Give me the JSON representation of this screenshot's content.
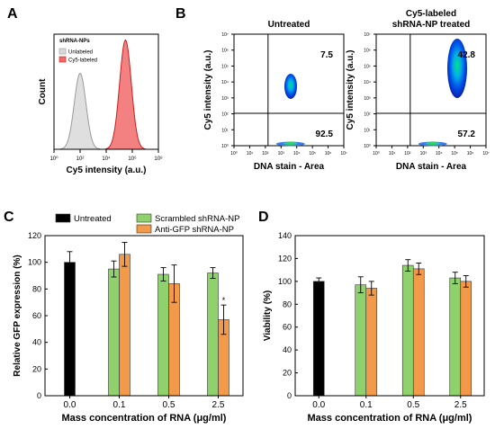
{
  "panels": {
    "A": "A",
    "B": "B",
    "C": "C",
    "D": "D"
  },
  "colors": {
    "untreated": "#000000",
    "scrambled": "#8fd16c",
    "anti_gfp": "#f29a4a",
    "unlabeled_hist": "#d9d9d9",
    "cy5_hist": "#f26b6b"
  },
  "chart_data": [
    {
      "id": "A",
      "type": "area",
      "xlabel": "Cy5 intensity (a.u.)",
      "ylabel": "Count",
      "x_scale": "log",
      "xlim": [
        1,
        100000000
      ],
      "x_ticks": [
        "10⁰",
        "10²",
        "10⁴",
        "10⁶",
        "10⁸"
      ],
      "legend_title": "shRNA-NPs",
      "legend_position": "top-left",
      "series": [
        {
          "name": "Unlabeled",
          "peak_x": 100,
          "peak_height": 0.66
        },
        {
          "name": "Cy5-labeled",
          "peak_x": 300000,
          "peak_height": 0.95
        }
      ]
    },
    {
      "id": "B1",
      "type": "heatmap",
      "title": "Untreated",
      "xlabel": "DNA stain - Area",
      "ylabel": "Cy5 intensity (a.u.)",
      "x_ticks": [
        "10⁰",
        "10¹",
        "10²",
        "10³",
        "10⁴",
        "10⁵",
        "10⁶",
        "10⁷"
      ],
      "y_ticks": [
        "10⁰",
        "10¹",
        "10²",
        "10³",
        "10⁴",
        "10⁵",
        "10⁶",
        "10⁷"
      ],
      "quadrant_values": {
        "upper_right": "7.5",
        "lower_right": "92.5"
      }
    },
    {
      "id": "B2",
      "type": "heatmap",
      "title": "Cy5-labeled\nshRNA-NP treated",
      "title_lines": [
        "Cy5-labeled",
        "shRNA-NP treated"
      ],
      "xlabel": "DNA stain - Area",
      "ylabel": "Cy5 intensity (a.u.)",
      "x_ticks": [
        "10⁰",
        "10¹",
        "10²",
        "10³",
        "10⁴",
        "10⁵",
        "10⁶",
        "10⁷"
      ],
      "y_ticks": [
        "10⁰",
        "10¹",
        "10²",
        "10³",
        "10⁴",
        "10⁵",
        "10⁶",
        "10⁷"
      ],
      "quadrant_values": {
        "upper_right": "42.8",
        "lower_right": "57.2"
      }
    },
    {
      "id": "C",
      "type": "bar",
      "xlabel": "Mass concentration of RNA (μg/ml)",
      "ylabel": "Relative GFP expression (%)",
      "ylim": [
        0,
        120
      ],
      "y_ticks": [
        0,
        20,
        40,
        60,
        80,
        100,
        120
      ],
      "categories": [
        "0.0",
        "0.1",
        "0.5",
        "2.5"
      ],
      "legend": [
        "Untreated",
        "Scrambled shRNA-NP",
        "Anti-GFP shRNA-NP"
      ],
      "series": [
        {
          "name": "Untreated",
          "values": [
            100,
            null,
            null,
            null
          ],
          "errors": [
            8,
            null,
            null,
            null
          ]
        },
        {
          "name": "Scrambled shRNA-NP",
          "values": [
            null,
            95,
            91,
            92
          ],
          "errors": [
            null,
            6,
            5,
            4
          ]
        },
        {
          "name": "Anti-GFP shRNA-NP",
          "values": [
            null,
            106,
            84,
            57
          ],
          "errors": [
            null,
            9,
            14,
            11
          ]
        }
      ],
      "annotation": "*"
    },
    {
      "id": "D",
      "type": "bar",
      "xlabel": "Mass concentration of RNA (μg/ml)",
      "ylabel": "Viability (%)",
      "ylim": [
        0,
        140
      ],
      "y_ticks": [
        0,
        20,
        40,
        60,
        80,
        100,
        120,
        140
      ],
      "categories": [
        "0.0",
        "0.1",
        "0.5",
        "2.5"
      ],
      "series": [
        {
          "name": "Untreated",
          "values": [
            100,
            null,
            null,
            null
          ],
          "errors": [
            3,
            null,
            null,
            null
          ]
        },
        {
          "name": "Scrambled shRNA-NP",
          "values": [
            null,
            97,
            114,
            103
          ],
          "errors": [
            null,
            7,
            5,
            5
          ]
        },
        {
          "name": "Anti-GFP shRNA-NP",
          "values": [
            null,
            94,
            111,
            100
          ],
          "errors": [
            null,
            6,
            5,
            5
          ]
        }
      ]
    }
  ]
}
